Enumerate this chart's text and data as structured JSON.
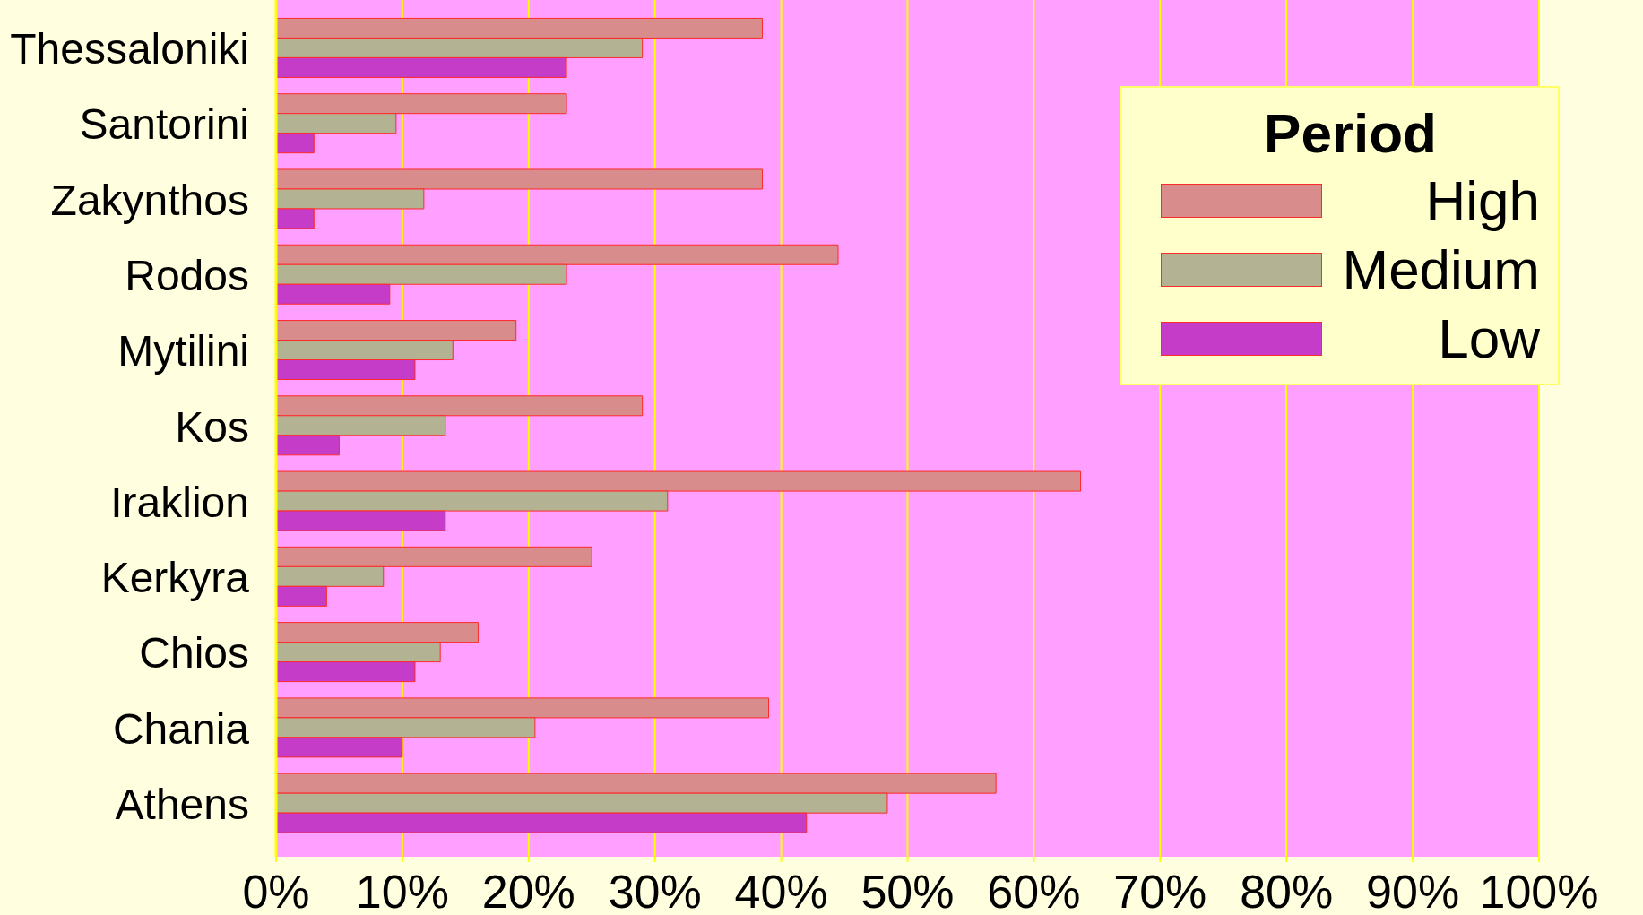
{
  "chart_data": {
    "type": "bar",
    "orientation": "horizontal",
    "categories": [
      "Thessaloniki",
      "Santorini",
      "Zakynthos",
      "Rodos",
      "Mytilini",
      "Kos",
      "Iraklion",
      "Kerkyra",
      "Chios",
      "Chania",
      "Athens"
    ],
    "series": [
      {
        "name": "High",
        "color": "#d98c8c",
        "values": [
          38.5,
          23,
          38.5,
          44.5,
          19,
          29,
          63.7,
          25,
          16,
          39,
          57
        ]
      },
      {
        "name": "Medium",
        "color": "#b3b394",
        "values": [
          29,
          9.5,
          11.7,
          23,
          14,
          13.4,
          31,
          8.5,
          13,
          20.5,
          48.4
        ]
      },
      {
        "name": "Low",
        "color": "#c43cc8",
        "values": [
          23,
          3,
          3,
          9,
          11,
          5,
          13.4,
          4,
          11,
          10,
          42
        ]
      }
    ],
    "xlim": [
      0,
      100
    ],
    "xticks": [
      {
        "value": 0,
        "label": "0%"
      },
      {
        "value": 10,
        "label": "10%"
      },
      {
        "value": 20,
        "label": "20%"
      },
      {
        "value": 30,
        "label": "30%"
      },
      {
        "value": 40,
        "label": "40%"
      },
      {
        "value": 50,
        "label": "50%"
      },
      {
        "value": 60,
        "label": "60%"
      },
      {
        "value": 70,
        "label": "70%"
      },
      {
        "value": 80,
        "label": "80%"
      },
      {
        "value": 90,
        "label": "90%"
      },
      {
        "value": 100,
        "label": "100%"
      }
    ],
    "grid": "x",
    "legend": "top right",
    "legend_title": "Period"
  }
}
